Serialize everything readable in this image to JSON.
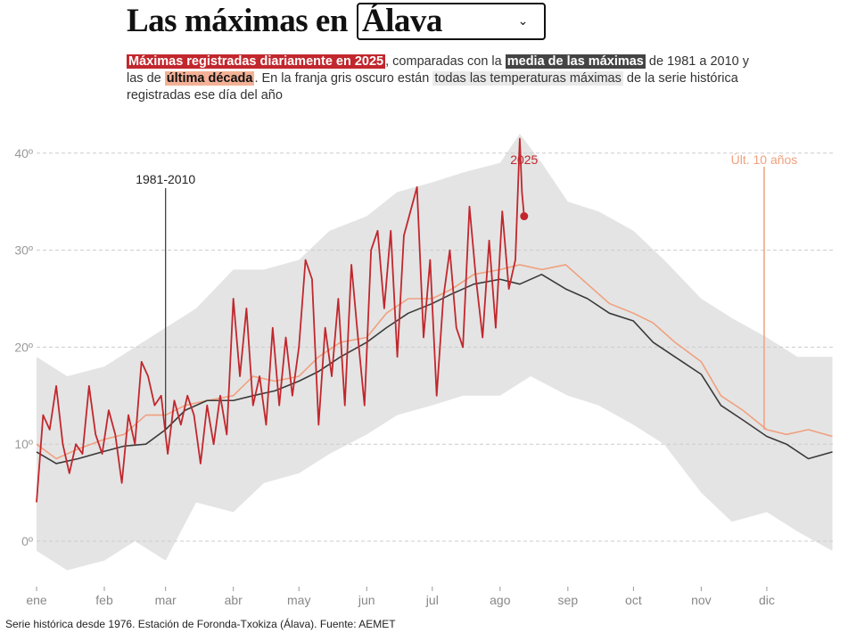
{
  "header": {
    "title_prefix": "Las máximas en",
    "province_select": {
      "value": "Álava",
      "icon": "chevron-down-icon"
    }
  },
  "subtitle": {
    "part1": "Máximas registradas diariamente en 2025",
    "part2": ", comparadas con la ",
    "part3": "media de las máximas",
    "part4": " de 1981 a 2010 y las de ",
    "part5": "última década",
    "part6": ". En la franja gris oscuro están ",
    "part7": "todas las temperaturas máximas",
    "part8": " de la serie histórica registradas ese día del año"
  },
  "footer": "Serie histórica desde 1976. Estación de Foronda-Txokiza (Álava). Fuente: AEMET",
  "chart_data": {
    "type": "line",
    "title": "",
    "xlabel": "",
    "ylabel": "",
    "ylim": [
      -5,
      43
    ],
    "yticks": [
      {
        "value": 0,
        "label": "0º"
      },
      {
        "value": 10,
        "label": "10º"
      },
      {
        "value": 20,
        "label": "20º"
      },
      {
        "value": 30,
        "label": "30º"
      },
      {
        "value": 40,
        "label": "40º"
      }
    ],
    "xticks": [
      {
        "date": "01-01",
        "label": "ene"
      },
      {
        "date": "02-01",
        "label": "feb"
      },
      {
        "date": "03-01",
        "label": "mar"
      },
      {
        "date": "04-01",
        "label": "abr"
      },
      {
        "date": "05-01",
        "label": "may"
      },
      {
        "date": "06-01",
        "label": "jun"
      },
      {
        "date": "07-01",
        "label": "jul"
      },
      {
        "date": "08-01",
        "label": "ago"
      },
      {
        "date": "09-01",
        "label": "sep"
      },
      {
        "date": "10-01",
        "label": "oct"
      },
      {
        "date": "11-01",
        "label": "nov"
      },
      {
        "date": "12-01",
        "label": "dic"
      }
    ],
    "grid": true,
    "colors": {
      "y2025": "#c1272d",
      "mean": "#3a3a3a",
      "decade": "#f0a07e",
      "band": "#e4e4e4",
      "grid": "#cccccc"
    },
    "band": {
      "max": [
        [
          "01-01",
          19
        ],
        [
          "01-15",
          17
        ],
        [
          "02-01",
          18
        ],
        [
          "02-15",
          20
        ],
        [
          "03-01",
          22
        ],
        [
          "03-15",
          24
        ],
        [
          "04-01",
          28
        ],
        [
          "04-15",
          28
        ],
        [
          "05-01",
          29
        ],
        [
          "05-15",
          32
        ],
        [
          "06-01",
          33.5
        ],
        [
          "06-15",
          36
        ],
        [
          "07-01",
          37
        ],
        [
          "07-15",
          38
        ],
        [
          "08-01",
          39
        ],
        [
          "08-10",
          42
        ],
        [
          "08-20",
          39
        ],
        [
          "09-01",
          35
        ],
        [
          "09-15",
          34
        ],
        [
          "10-01",
          32
        ],
        [
          "10-15",
          29
        ],
        [
          "11-01",
          25
        ],
        [
          "11-15",
          23
        ],
        [
          "12-01",
          21
        ],
        [
          "12-15",
          19
        ],
        [
          "12-31",
          19
        ]
      ],
      "min": [
        [
          "01-01",
          -1
        ],
        [
          "01-15",
          -3
        ],
        [
          "02-01",
          -2
        ],
        [
          "02-15",
          0
        ],
        [
          "03-01",
          -2
        ],
        [
          "03-15",
          4
        ],
        [
          "04-01",
          3
        ],
        [
          "04-15",
          6
        ],
        [
          "05-01",
          7
        ],
        [
          "05-15",
          9
        ],
        [
          "06-01",
          11
        ],
        [
          "06-15",
          13
        ],
        [
          "07-01",
          14
        ],
        [
          "07-15",
          15
        ],
        [
          "08-01",
          15
        ],
        [
          "08-15",
          17
        ],
        [
          "09-01",
          15
        ],
        [
          "09-15",
          14
        ],
        [
          "10-01",
          12
        ],
        [
          "10-15",
          10
        ],
        [
          "11-01",
          5
        ],
        [
          "11-15",
          2
        ],
        [
          "12-01",
          3
        ],
        [
          "12-15",
          1
        ],
        [
          "12-31",
          -1
        ]
      ]
    },
    "series": [
      {
        "name": "1981-2010",
        "key": "mean",
        "values": [
          [
            "01-01",
            9.2
          ],
          [
            "01-10",
            8.0
          ],
          [
            "01-20",
            8.5
          ],
          [
            "01-31",
            9.2
          ],
          [
            "02-10",
            9.8
          ],
          [
            "02-20",
            10.0
          ],
          [
            "03-01",
            11.5
          ],
          [
            "03-10",
            13.5
          ],
          [
            "03-20",
            14.5
          ],
          [
            "04-01",
            14.5
          ],
          [
            "04-10",
            15.0
          ],
          [
            "04-20",
            15.5
          ],
          [
            "05-01",
            16.5
          ],
          [
            "05-10",
            17.5
          ],
          [
            "05-20",
            19.0
          ],
          [
            "06-01",
            20.5
          ],
          [
            "06-10",
            22.0
          ],
          [
            "06-20",
            23.5
          ],
          [
            "07-01",
            24.5
          ],
          [
            "07-10",
            25.5
          ],
          [
            "07-20",
            26.5
          ],
          [
            "08-01",
            27.0
          ],
          [
            "08-10",
            26.5
          ],
          [
            "08-20",
            27.5
          ],
          [
            "08-31",
            26.0
          ],
          [
            "09-10",
            25.0
          ],
          [
            "09-20",
            23.5
          ],
          [
            "10-01",
            22.7
          ],
          [
            "10-10",
            20.5
          ],
          [
            "10-20",
            19.0
          ],
          [
            "11-01",
            17.2
          ],
          [
            "11-10",
            14.0
          ],
          [
            "11-20",
            12.5
          ],
          [
            "12-01",
            10.8
          ],
          [
            "12-10",
            10.0
          ],
          [
            "12-20",
            8.5
          ],
          [
            "12-31",
            9.2
          ]
        ]
      },
      {
        "name": "Últ. 10 años",
        "key": "decade",
        "values": [
          [
            "01-01",
            10
          ],
          [
            "01-10",
            8.5
          ],
          [
            "01-20",
            9.5
          ],
          [
            "02-01",
            10.5
          ],
          [
            "02-10",
            11
          ],
          [
            "02-20",
            13
          ],
          [
            "03-01",
            13
          ],
          [
            "03-10",
            14
          ],
          [
            "03-20",
            14.5
          ],
          [
            "04-01",
            15
          ],
          [
            "04-10",
            17
          ],
          [
            "04-20",
            16.5
          ],
          [
            "05-01",
            17
          ],
          [
            "05-10",
            19
          ],
          [
            "05-20",
            20.5
          ],
          [
            "06-01",
            21
          ],
          [
            "06-10",
            23.5
          ],
          [
            "06-20",
            25
          ],
          [
            "07-01",
            25
          ],
          [
            "07-10",
            26
          ],
          [
            "07-20",
            27.5
          ],
          [
            "08-01",
            28
          ],
          [
            "08-10",
            28.5
          ],
          [
            "08-20",
            28
          ],
          [
            "08-31",
            28.5
          ],
          [
            "09-10",
            26.5
          ],
          [
            "09-20",
            24.5
          ],
          [
            "10-01",
            23.5
          ],
          [
            "10-10",
            22.5
          ],
          [
            "10-20",
            20.5
          ],
          [
            "11-01",
            18.5
          ],
          [
            "11-10",
            15
          ],
          [
            "11-20",
            13.5
          ],
          [
            "12-01",
            11.5
          ],
          [
            "12-10",
            11
          ],
          [
            "12-20",
            11.5
          ],
          [
            "12-31",
            10.8
          ]
        ]
      },
      {
        "name": "2025",
        "key": "y2025",
        "values": [
          [
            "01-01",
            4
          ],
          [
            "01-04",
            13
          ],
          [
            "01-07",
            11.5
          ],
          [
            "01-10",
            16
          ],
          [
            "01-13",
            10
          ],
          [
            "01-16",
            7
          ],
          [
            "01-19",
            10
          ],
          [
            "01-22",
            9
          ],
          [
            "01-25",
            16
          ],
          [
            "01-28",
            11
          ],
          [
            "01-31",
            9
          ],
          [
            "02-03",
            13.5
          ],
          [
            "02-06",
            11
          ],
          [
            "02-09",
            6
          ],
          [
            "02-12",
            13
          ],
          [
            "02-15",
            10
          ],
          [
            "02-18",
            18.5
          ],
          [
            "02-21",
            17
          ],
          [
            "02-24",
            14
          ],
          [
            "02-27",
            15
          ],
          [
            "03-02",
            9
          ],
          [
            "03-05",
            14.5
          ],
          [
            "03-08",
            12
          ],
          [
            "03-11",
            15
          ],
          [
            "03-14",
            13
          ],
          [
            "03-17",
            8
          ],
          [
            "03-20",
            14
          ],
          [
            "03-23",
            10
          ],
          [
            "03-26",
            15
          ],
          [
            "03-29",
            11
          ],
          [
            "04-01",
            25
          ],
          [
            "04-04",
            17
          ],
          [
            "04-07",
            24
          ],
          [
            "04-10",
            14
          ],
          [
            "04-13",
            17
          ],
          [
            "04-16",
            12
          ],
          [
            "04-19",
            22
          ],
          [
            "04-22",
            14
          ],
          [
            "04-25",
            21
          ],
          [
            "04-28",
            15
          ],
          [
            "05-01",
            20
          ],
          [
            "05-04",
            29
          ],
          [
            "05-07",
            27
          ],
          [
            "05-10",
            12
          ],
          [
            "05-13",
            22
          ],
          [
            "05-16",
            17
          ],
          [
            "05-19",
            25
          ],
          [
            "05-22",
            14
          ],
          [
            "05-25",
            28.5
          ],
          [
            "05-28",
            21
          ],
          [
            "05-31",
            14
          ],
          [
            "06-03",
            30
          ],
          [
            "06-06",
            32
          ],
          [
            "06-09",
            24
          ],
          [
            "06-12",
            32
          ],
          [
            "06-15",
            19
          ],
          [
            "06-18",
            31.5
          ],
          [
            "06-21",
            34
          ],
          [
            "06-24",
            36.5
          ],
          [
            "06-27",
            21
          ],
          [
            "06-30",
            29
          ],
          [
            "07-03",
            15
          ],
          [
            "07-06",
            25
          ],
          [
            "07-09",
            30
          ],
          [
            "07-12",
            22
          ],
          [
            "07-15",
            20
          ],
          [
            "07-18",
            34.5
          ],
          [
            "07-21",
            27
          ],
          [
            "07-24",
            21
          ],
          [
            "07-27",
            31
          ],
          [
            "07-30",
            22
          ],
          [
            "08-02",
            34
          ],
          [
            "08-05",
            26
          ],
          [
            "08-08",
            29
          ],
          [
            "08-10",
            41.5
          ],
          [
            "08-11",
            36
          ],
          [
            "08-12",
            33.5
          ]
        ]
      }
    ],
    "annotations": {
      "mean_label": "1981-2010",
      "decade_label": "Últ. 10 años",
      "y2025_label": "2025"
    }
  }
}
